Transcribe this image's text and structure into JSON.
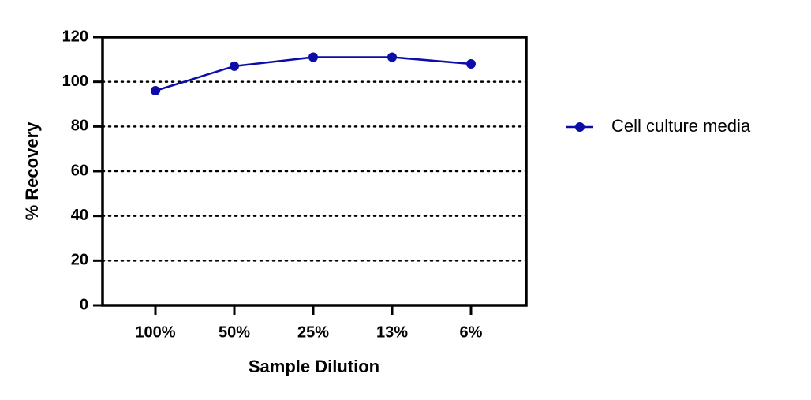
{
  "chart_data": {
    "type": "line",
    "x_label": "Sample Dilution",
    "y_label": "% Recovery",
    "categories": [
      "100%",
      "50%",
      "25%",
      "13%",
      "6%"
    ],
    "series": [
      {
        "name": "Cell culture media",
        "color": "#0c0ca8",
        "values": [
          96,
          107,
          111,
          111,
          108
        ]
      }
    ],
    "ylim": [
      0,
      120
    ],
    "yticks": [
      0,
      20,
      40,
      60,
      80,
      100,
      120
    ],
    "grid": true,
    "legend": "right"
  }
}
